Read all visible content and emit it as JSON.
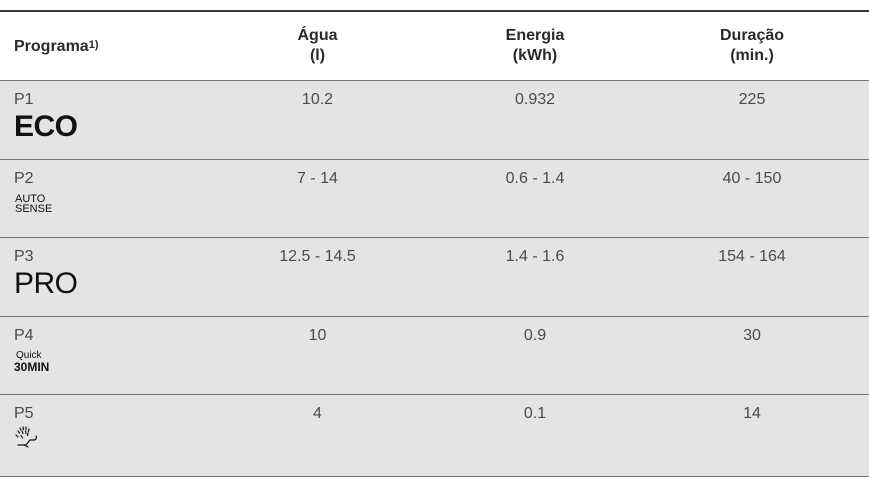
{
  "header": {
    "programa": "Programa",
    "programa_note": "1)",
    "agua_line1": "Água",
    "agua_line2": "(l)",
    "energia_line1": "Energia",
    "energia_line2": "(kWh)",
    "duracao_line1": "Duração",
    "duracao_line2": "(min.)"
  },
  "rows": [
    {
      "code": "P1",
      "logo": "ECO",
      "agua": "10.2",
      "energia": "0.932",
      "duracao": "225"
    },
    {
      "code": "P2",
      "logo_line1": "AUTO",
      "logo_line2": "SENSE",
      "agua": "7 - 14",
      "energia": "0.6 - 1.4",
      "duracao": "40 - 150"
    },
    {
      "code": "P3",
      "logo": "PRO",
      "agua": "12.5 - 14.5",
      "energia": "1.4 - 1.6",
      "duracao": "154 - 164"
    },
    {
      "code": "P4",
      "logo_line1": "Quick",
      "logo_line2": "30MIN",
      "agua": "10",
      "energia": "0.9",
      "duracao": "30"
    },
    {
      "code": "P5",
      "icon": "rinse-spray-icon",
      "agua": "4",
      "energia": "0.1",
      "duracao": "14"
    }
  ]
}
